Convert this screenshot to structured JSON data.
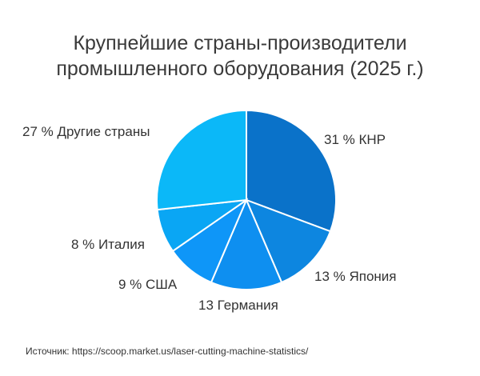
{
  "title_lines": [
    "Крупнейшие страны-производители",
    "промышленного оборудования (2025 г.)"
  ],
  "source": "Источник: https://scoop.market.us/laser-cutting-machine-statistics/",
  "chart_data": {
    "type": "pie",
    "title": "Крупнейшие страны-производители промышленного оборудования (2025 г.)",
    "unit": "%",
    "slices": [
      {
        "label": "КНР",
        "value": 31,
        "display": "31 % КНР",
        "color": "#0a72c9"
      },
      {
        "label": "Япония",
        "value": 13,
        "display": "13 % Япония",
        "color": "#0d86e0"
      },
      {
        "label": "Германия",
        "value": 13,
        "display": "13 Германия",
        "color": "#0e8ff0"
      },
      {
        "label": "США",
        "value": 9,
        "display": "9 % США",
        "color": "#0e96f8"
      },
      {
        "label": "Италия",
        "value": 8,
        "display": "8 % Италия",
        "color": "#0aa6f4"
      },
      {
        "label": "Другие страны",
        "value": 27,
        "display": "27 % Другие страны",
        "color": "#0bb8f8"
      }
    ]
  }
}
